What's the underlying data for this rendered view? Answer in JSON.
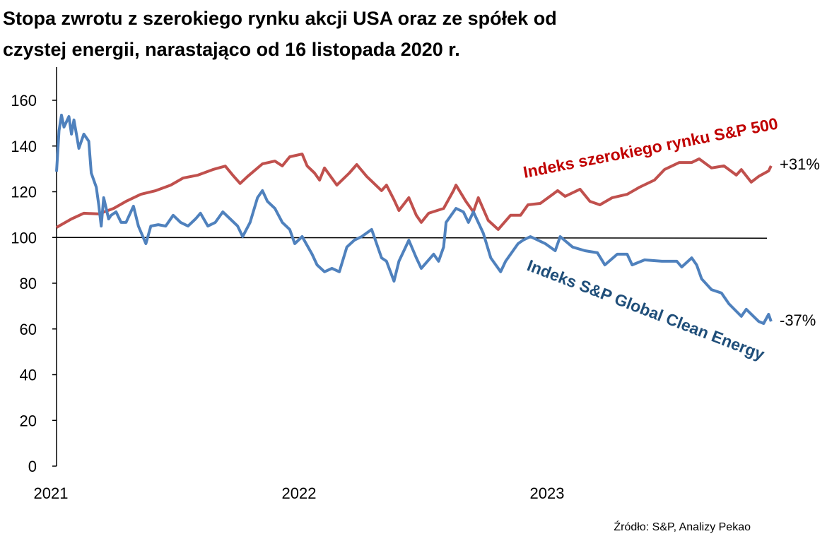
{
  "title_line1": "Stopa zwrotu z szerokiego rynku akcji USA oraz ze spółek od",
  "title_line2": "czystej energii, narastająco od 16 listopada 2020 r.",
  "source": "Źródło: S&P, Analizy Pekao",
  "chart_data": {
    "type": "line",
    "title": "Stopa zwrotu z szerokiego rynku akcji USA oraz ze spółek od czystej energii, narastająco od 16 listopada 2020 r.",
    "xlabel": "",
    "ylabel": "",
    "x_unit": "years since start of 2021 tick",
    "ylim": [
      0,
      170
    ],
    "xlim": [
      0,
      2.88
    ],
    "yticks": [
      "0",
      "20",
      "40",
      "60",
      "80",
      "100",
      "120",
      "140",
      "160"
    ],
    "ytick_values": [
      0,
      20,
      40,
      60,
      80,
      100,
      120,
      140,
      160
    ],
    "xticks": [
      "2021",
      "2022",
      "2023"
    ],
    "xtick_values": [
      0,
      1,
      2
    ],
    "reference_line": 100,
    "grid": false,
    "colors": {
      "sp500": "#c0504d",
      "clean": "#4f81bd",
      "sp500_label": "#c00000",
      "clean_label": "#1f4e79"
    },
    "series": [
      {
        "name": "Indeks szerokiego rynku S&P 500",
        "end_label": "+31%",
        "x": [
          0,
          0.06,
          0.11,
          0.17,
          0.23,
          0.28,
          0.34,
          0.4,
          0.46,
          0.51,
          0.57,
          0.63,
          0.68,
          0.71,
          0.74,
          0.77,
          0.83,
          0.88,
          0.91,
          0.94,
          0.99,
          1.01,
          1.04,
          1.06,
          1.08,
          1.13,
          1.18,
          1.21,
          1.25,
          1.31,
          1.33,
          1.36,
          1.38,
          1.42,
          1.45,
          1.47,
          1.5,
          1.56,
          1.6,
          1.61,
          1.65,
          1.68,
          1.7,
          1.74,
          1.78,
          1.83,
          1.87,
          1.9,
          1.95,
          2.0,
          2.02,
          2.05,
          2.11,
          2.15,
          2.19,
          2.24,
          2.3,
          2.35,
          2.41,
          2.45,
          2.51,
          2.56,
          2.59,
          2.64,
          2.69,
          2.74,
          2.76,
          2.8,
          2.83,
          2.87,
          2.88
        ],
        "y": [
          104.4,
          108.1,
          110.6,
          110.3,
          112.7,
          115.8,
          118.9,
          120.5,
          122.9,
          126.0,
          127.3,
          129.7,
          131.2,
          127.3,
          123.6,
          126.7,
          132.2,
          133.4,
          131.3,
          135.3,
          136.5,
          131.3,
          128.2,
          125.1,
          130.4,
          122.9,
          128.2,
          131.9,
          126.7,
          120.5,
          122.9,
          116.5,
          111.8,
          117.4,
          109.7,
          106.6,
          110.6,
          112.7,
          120.5,
          122.9,
          115.8,
          111.2,
          117.4,
          107.5,
          103.5,
          109.7,
          109.7,
          114.3,
          114.9,
          118.9,
          120.5,
          118.0,
          121.1,
          115.8,
          114.3,
          117.4,
          118.9,
          122.0,
          125.1,
          129.7,
          132.8,
          132.8,
          134.4,
          130.4,
          131.3,
          127.3,
          129.7,
          124.2,
          126.7,
          129.1,
          131.3
        ]
      },
      {
        "name": "Indeks S&P Global Clean Energy",
        "end_label": "-37%",
        "x": [
          0,
          0.01,
          0.02,
          0.03,
          0.05,
          0.06,
          0.07,
          0.09,
          0.11,
          0.13,
          0.14,
          0.16,
          0.17,
          0.18,
          0.19,
          0.21,
          0.22,
          0.24,
          0.26,
          0.28,
          0.31,
          0.33,
          0.36,
          0.38,
          0.41,
          0.44,
          0.47,
          0.5,
          0.53,
          0.56,
          0.58,
          0.61,
          0.64,
          0.67,
          0.7,
          0.73,
          0.75,
          0.78,
          0.81,
          0.83,
          0.85,
          0.88,
          0.91,
          0.94,
          0.96,
          0.99,
          1.03,
          1.05,
          1.08,
          1.11,
          1.14,
          1.17,
          1.2,
          1.23,
          1.27,
          1.29,
          1.31,
          1.33,
          1.36,
          1.38,
          1.42,
          1.45,
          1.47,
          1.52,
          1.54,
          1.56,
          1.57,
          1.61,
          1.64,
          1.66,
          1.68,
          1.72,
          1.75,
          1.79,
          1.81,
          1.86,
          1.88,
          1.91,
          1.97,
          2.01,
          2.03,
          2.08,
          2.13,
          2.18,
          2.21,
          2.26,
          2.3,
          2.32,
          2.37,
          2.44,
          2.5,
          2.52,
          2.56,
          2.58,
          2.6,
          2.64,
          2.68,
          2.71,
          2.76,
          2.78,
          2.83,
          2.85,
          2.87,
          2.88
        ],
        "y": [
          128.8,
          146.7,
          153.5,
          148.3,
          152.9,
          145.2,
          151.4,
          139.0,
          145.2,
          142.1,
          128.2,
          122.0,
          114.3,
          105.0,
          117.4,
          108.1,
          109.7,
          111.2,
          106.6,
          106.6,
          113.7,
          105.0,
          97.3,
          105.0,
          105.6,
          105.0,
          109.7,
          106.6,
          105.0,
          108.1,
          110.6,
          105.0,
          106.6,
          111.2,
          108.1,
          105.0,
          100.4,
          106.6,
          117.4,
          120.5,
          115.8,
          112.7,
          106.6,
          103.5,
          97.3,
          100.4,
          92.7,
          88.0,
          85.0,
          86.5,
          85.0,
          95.8,
          98.8,
          100.4,
          103.5,
          97.3,
          91.1,
          89.6,
          80.9,
          89.6,
          98.8,
          91.1,
          86.5,
          92.7,
          89.6,
          95.8,
          106.6,
          112.7,
          111.2,
          106.6,
          111.2,
          101.9,
          91.1,
          85.0,
          89.6,
          97.3,
          98.8,
          100.4,
          97.3,
          94.2,
          100.4,
          95.8,
          94.2,
          93.3,
          88.0,
          92.7,
          92.7,
          88.0,
          90.2,
          89.6,
          89.6,
          87.1,
          91.1,
          88.0,
          81.9,
          77.2,
          75.7,
          71.0,
          65.5,
          68.6,
          63.3,
          62.4,
          66.4,
          63.3
        ]
      }
    ]
  }
}
